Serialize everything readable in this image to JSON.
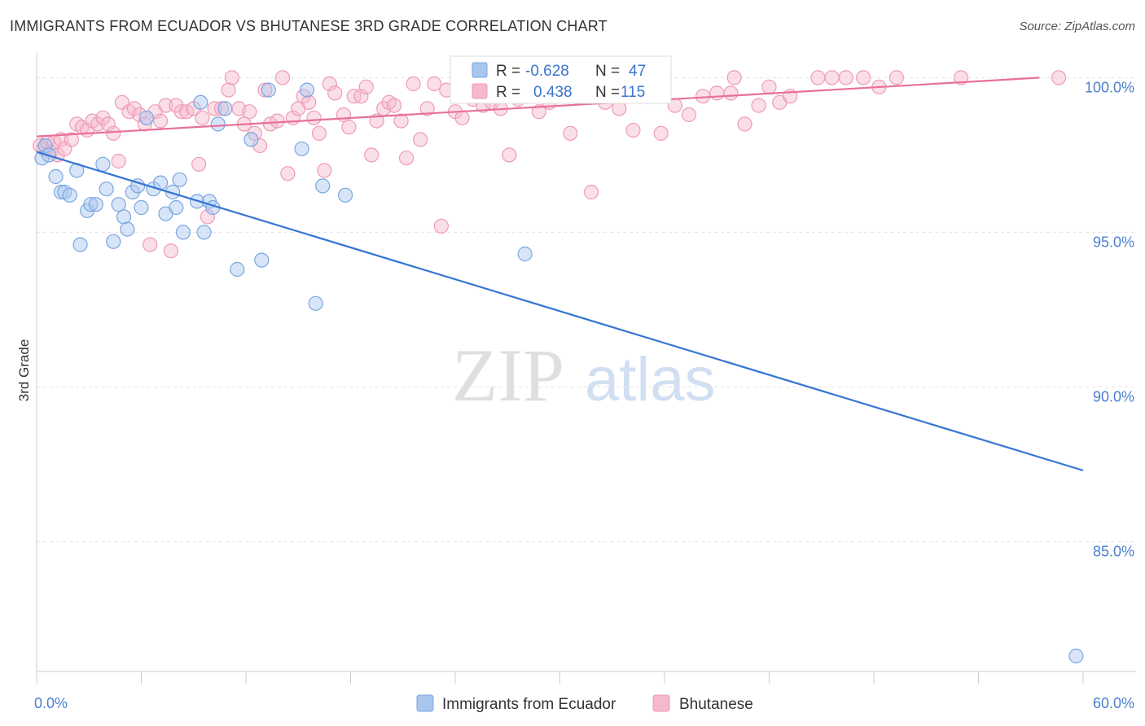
{
  "header": {
    "title": "IMMIGRANTS FROM ECUADOR VS BHUTANESE 3RD GRADE CORRELATION CHART",
    "source": "Source: ZipAtlas.com"
  },
  "watermark": {
    "zip": "ZIP",
    "atlas": "atlas"
  },
  "colors": {
    "blue_fill": "#a9c6ef",
    "blue_stroke": "#7aa6e0",
    "blue_line": "#3575d3",
    "pink_fill": "#f6b9cc",
    "pink_stroke": "#ee9bb5",
    "pink_line": "#e8709a",
    "value_text": "#3a73cc",
    "grid": "#e3e3e3"
  },
  "stats_legend": {
    "rows": [
      {
        "r_label": "R =",
        "r_value": "-0.628",
        "n_label": "N =",
        "n_value": "47"
      },
      {
        "r_label": "R =",
        "r_value": "0.438",
        "n_label": "N =",
        "n_value": "115"
      }
    ]
  },
  "bottom_legend": {
    "items": [
      {
        "label": "Immigrants from Ecuador"
      },
      {
        "label": "Bhutanese"
      }
    ]
  },
  "chart_data": {
    "type": "scatter",
    "title": "IMMIGRANTS FROM ECUADOR VS BHUTANESE 3RD GRADE CORRELATION CHART",
    "xlabel": "",
    "ylabel": "3rd Grade",
    "xlim": [
      0,
      60
    ],
    "ylim": [
      80.8,
      100.8
    ],
    "x_tick_labels": [
      "0.0%",
      "60.0%"
    ],
    "y_ticks": [
      85,
      90,
      95,
      100
    ],
    "y_tick_labels": [
      "85.0%",
      "90.0%",
      "95.0%",
      "100.0%"
    ],
    "grid": true,
    "legend": "bottom-center",
    "series": [
      {
        "name": "Immigrants from Ecuador",
        "r": -0.628,
        "n": 47,
        "trend": {
          "x": [
            0,
            60
          ],
          "y": [
            97.6,
            87.3
          ]
        },
        "points": [
          [
            0.3,
            97.4
          ],
          [
            0.5,
            97.8
          ],
          [
            0.7,
            97.5
          ],
          [
            1.1,
            96.8
          ],
          [
            1.4,
            96.3
          ],
          [
            1.6,
            96.3
          ],
          [
            1.9,
            96.2
          ],
          [
            2.3,
            97.0
          ],
          [
            2.5,
            94.6
          ],
          [
            2.9,
            95.7
          ],
          [
            3.1,
            95.9
          ],
          [
            3.4,
            95.9
          ],
          [
            3.8,
            97.2
          ],
          [
            4.0,
            96.4
          ],
          [
            4.4,
            94.7
          ],
          [
            4.7,
            95.9
          ],
          [
            5.0,
            95.5
          ],
          [
            5.2,
            95.1
          ],
          [
            5.5,
            96.3
          ],
          [
            5.8,
            96.5
          ],
          [
            6.0,
            95.8
          ],
          [
            6.3,
            98.7
          ],
          [
            6.7,
            96.4
          ],
          [
            7.1,
            96.6
          ],
          [
            7.4,
            95.6
          ],
          [
            7.8,
            96.3
          ],
          [
            8.0,
            95.8
          ],
          [
            8.2,
            96.7
          ],
          [
            8.4,
            95.0
          ],
          [
            9.2,
            96.0
          ],
          [
            9.4,
            99.2
          ],
          [
            9.6,
            95.0
          ],
          [
            9.9,
            96.0
          ],
          [
            10.1,
            95.8
          ],
          [
            10.4,
            98.5
          ],
          [
            10.8,
            99.0
          ],
          [
            11.5,
            93.8
          ],
          [
            12.3,
            98.0
          ],
          [
            12.9,
            94.1
          ],
          [
            13.3,
            99.6
          ],
          [
            15.2,
            97.7
          ],
          [
            15.5,
            99.6
          ],
          [
            16.0,
            92.7
          ],
          [
            16.4,
            96.5
          ],
          [
            17.7,
            96.2
          ],
          [
            28.0,
            94.3
          ],
          [
            59.6,
            81.3
          ]
        ]
      },
      {
        "name": "Bhutanese",
        "r": 0.438,
        "n": 115,
        "trend": {
          "x": [
            0,
            57.5
          ],
          "y": [
            98.1,
            100.0
          ]
        },
        "points": [
          [
            0.2,
            97.8
          ],
          [
            0.4,
            97.7
          ],
          [
            0.6,
            97.9
          ],
          [
            0.8,
            97.6
          ],
          [
            1.0,
            97.9
          ],
          [
            1.2,
            97.5
          ],
          [
            1.4,
            98.0
          ],
          [
            1.6,
            97.7
          ],
          [
            2.0,
            98.0
          ],
          [
            2.3,
            98.5
          ],
          [
            2.6,
            98.4
          ],
          [
            2.9,
            98.3
          ],
          [
            3.2,
            98.6
          ],
          [
            3.5,
            98.5
          ],
          [
            3.8,
            98.7
          ],
          [
            4.1,
            98.5
          ],
          [
            4.4,
            98.2
          ],
          [
            4.7,
            97.3
          ],
          [
            4.9,
            99.2
          ],
          [
            5.3,
            98.9
          ],
          [
            5.6,
            99.0
          ],
          [
            5.9,
            98.8
          ],
          [
            6.2,
            98.5
          ],
          [
            6.5,
            94.6
          ],
          [
            6.8,
            98.9
          ],
          [
            7.1,
            98.6
          ],
          [
            7.4,
            99.1
          ],
          [
            7.7,
            94.4
          ],
          [
            8.0,
            99.1
          ],
          [
            8.3,
            98.9
          ],
          [
            8.6,
            98.9
          ],
          [
            9.0,
            99.0
          ],
          [
            9.3,
            97.2
          ],
          [
            9.5,
            98.7
          ],
          [
            9.8,
            95.5
          ],
          [
            10.2,
            99.0
          ],
          [
            10.6,
            99.0
          ],
          [
            11.0,
            99.6
          ],
          [
            11.2,
            100.0
          ],
          [
            11.6,
            99.0
          ],
          [
            11.9,
            98.5
          ],
          [
            12.2,
            98.9
          ],
          [
            12.5,
            98.2
          ],
          [
            12.8,
            97.8
          ],
          [
            13.1,
            99.6
          ],
          [
            13.4,
            98.5
          ],
          [
            13.8,
            98.6
          ],
          [
            14.1,
            100.0
          ],
          [
            14.4,
            96.9
          ],
          [
            14.7,
            98.7
          ],
          [
            15.0,
            99.0
          ],
          [
            15.3,
            99.4
          ],
          [
            15.6,
            99.2
          ],
          [
            15.9,
            98.7
          ],
          [
            16.2,
            98.2
          ],
          [
            16.5,
            97.0
          ],
          [
            16.8,
            99.8
          ],
          [
            17.1,
            99.5
          ],
          [
            17.6,
            98.8
          ],
          [
            17.9,
            98.4
          ],
          [
            18.2,
            99.4
          ],
          [
            18.6,
            99.4
          ],
          [
            18.9,
            99.7
          ],
          [
            19.2,
            97.5
          ],
          [
            19.5,
            98.6
          ],
          [
            19.9,
            99.0
          ],
          [
            20.2,
            99.2
          ],
          [
            20.5,
            99.1
          ],
          [
            20.9,
            98.6
          ],
          [
            21.2,
            97.4
          ],
          [
            21.6,
            99.8
          ],
          [
            22.0,
            98.0
          ],
          [
            22.4,
            99.0
          ],
          [
            22.8,
            99.8
          ],
          [
            23.2,
            95.2
          ],
          [
            23.5,
            99.6
          ],
          [
            24.0,
            98.9
          ],
          [
            24.4,
            98.7
          ],
          [
            25.0,
            99.3
          ],
          [
            25.6,
            99.1
          ],
          [
            26.1,
            99.2
          ],
          [
            26.6,
            99.0
          ],
          [
            27.1,
            97.5
          ],
          [
            27.6,
            99.3
          ],
          [
            28.2,
            99.4
          ],
          [
            28.8,
            98.9
          ],
          [
            29.4,
            99.2
          ],
          [
            30.0,
            99.5
          ],
          [
            30.6,
            98.2
          ],
          [
            31.2,
            99.6
          ],
          [
            31.8,
            96.3
          ],
          [
            32.6,
            99.2
          ],
          [
            33.4,
            99.0
          ],
          [
            34.2,
            98.3
          ],
          [
            35.0,
            99.7
          ],
          [
            35.8,
            98.2
          ],
          [
            36.6,
            99.1
          ],
          [
            37.4,
            98.8
          ],
          [
            38.2,
            99.4
          ],
          [
            39.0,
            99.5
          ],
          [
            39.8,
            99.5
          ],
          [
            40.6,
            98.5
          ],
          [
            41.4,
            99.1
          ],
          [
            42.0,
            99.7
          ],
          [
            42.6,
            99.2
          ],
          [
            43.2,
            99.4
          ],
          [
            44.8,
            100.0
          ],
          [
            45.6,
            100.0
          ],
          [
            46.4,
            100.0
          ],
          [
            47.4,
            100.0
          ],
          [
            48.3,
            99.7
          ],
          [
            49.3,
            100.0
          ],
          [
            53.0,
            100.0
          ],
          [
            58.6,
            100.0
          ],
          [
            40.0,
            100.0
          ]
        ]
      }
    ]
  }
}
